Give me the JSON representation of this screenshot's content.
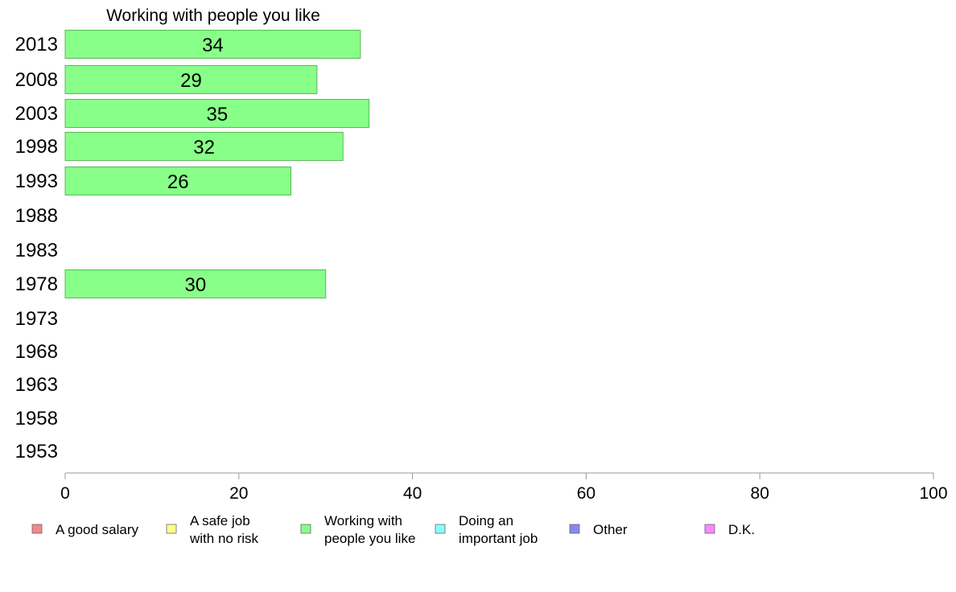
{
  "chart_data": {
    "type": "bar",
    "orientation": "horizontal",
    "title": "Working with people you like",
    "categories": [
      "2013",
      "2008",
      "2003",
      "1998",
      "1993",
      "1988",
      "1983",
      "1978",
      "1973",
      "1968",
      "1963",
      "1958",
      "1953"
    ],
    "series": [
      {
        "name": "Working with people you like",
        "color": "#88ff88",
        "values": [
          34,
          29,
          35,
          32,
          26,
          null,
          null,
          30,
          null,
          null,
          null,
          null,
          null
        ],
        "labels": [
          "34",
          "29",
          "35",
          "32",
          "26",
          null,
          null,
          "30",
          null,
          null,
          null,
          null,
          null
        ]
      }
    ],
    "x_ticks": [
      "0",
      "20",
      "40",
      "60",
      "80",
      "100"
    ],
    "xlim": [
      0,
      100
    ],
    "grid": false,
    "legend_position": "bottom",
    "legend": [
      {
        "lines": [
          "A good salary"
        ],
        "color": "#f48888"
      },
      {
        "lines": [
          "A safe job",
          "with no risk"
        ],
        "color": "#ffff88"
      },
      {
        "lines": [
          "Working with",
          "people you like"
        ],
        "color": "#88ff88"
      },
      {
        "lines": [
          "Doing an",
          "important job"
        ],
        "color": "#88ffff"
      },
      {
        "lines": [
          "Other"
        ],
        "color": "#8888f4"
      },
      {
        "lines": [
          "D.K."
        ],
        "color": "#ff88ff"
      }
    ]
  }
}
